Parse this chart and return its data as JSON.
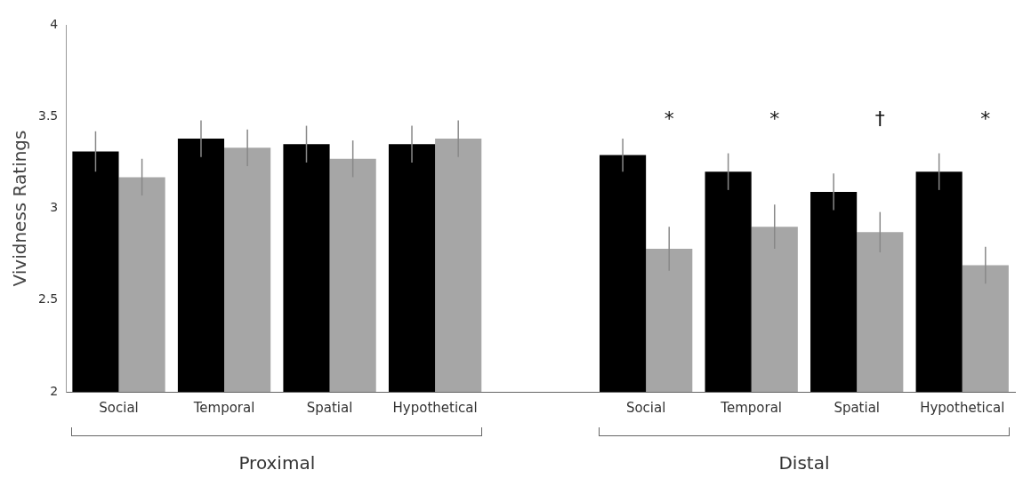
{
  "chart_data": {
    "type": "bar",
    "ylabel": "Vividness Ratings",
    "categories": [
      "Social",
      "Temporal",
      "Spatial",
      "Hypothetical",
      null,
      "Social",
      "Temporal",
      "Spatial",
      "Hypothetical"
    ],
    "series": [
      {
        "color": "#000000",
        "values": [
          3.31,
          3.38,
          3.35,
          3.35,
          null,
          3.29,
          3.2,
          3.09,
          3.2
        ],
        "errors": [
          0.11,
          0.1,
          0.1,
          0.1,
          null,
          0.09,
          0.1,
          0.1,
          0.1
        ]
      },
      {
        "color": "#a6a6a6",
        "values": [
          3.17,
          3.33,
          3.27,
          3.38,
          null,
          2.78,
          2.9,
          2.87,
          2.69
        ],
        "errors": [
          0.1,
          0.1,
          0.1,
          0.1,
          null,
          0.12,
          0.12,
          0.11,
          0.1
        ]
      }
    ],
    "ylim": [
      2,
      4
    ],
    "yticks": [
      2,
      2.5,
      3,
      3.5,
      4
    ],
    "grid": false,
    "legend": false,
    "annotations": [
      "Proximal",
      "Distal",
      "*",
      "*",
      "†",
      "*"
    ]
  }
}
